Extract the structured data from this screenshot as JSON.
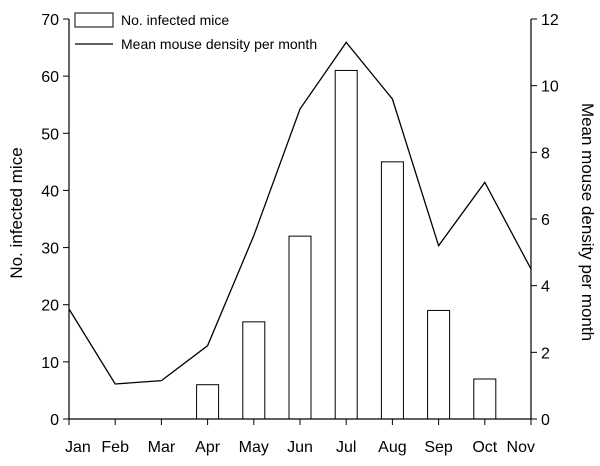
{
  "chart_data": {
    "type": "bar",
    "categories": [
      "Jan",
      "Feb",
      "Mar",
      "Apr",
      "May",
      "Jun",
      "Jul",
      "Aug",
      "Sep",
      "Oct",
      "Nov"
    ],
    "series": [
      {
        "name": "No. infected mice",
        "type": "bar",
        "axis": "left",
        "values": [
          0,
          0,
          0,
          6,
          17,
          32,
          61,
          45,
          19,
          7,
          0
        ]
      },
      {
        "name": "Mean mouse density per month",
        "type": "line",
        "axis": "right",
        "values": [
          3.3,
          1.05,
          1.15,
          2.2,
          5.5,
          9.3,
          11.3,
          9.6,
          5.2,
          7.1,
          4.5
        ]
      }
    ],
    "ylabel": "No. infected mice",
    "ylim": [
      0,
      70
    ],
    "yticks": [
      0,
      10,
      20,
      30,
      40,
      50,
      60,
      70
    ],
    "y2label": "Mean mouse density per month",
    "y2lim": [
      0,
      12
    ],
    "y2ticks": [
      0,
      2,
      4,
      6,
      8,
      10,
      12
    ],
    "legend_position": "top-left",
    "grid": false
  }
}
